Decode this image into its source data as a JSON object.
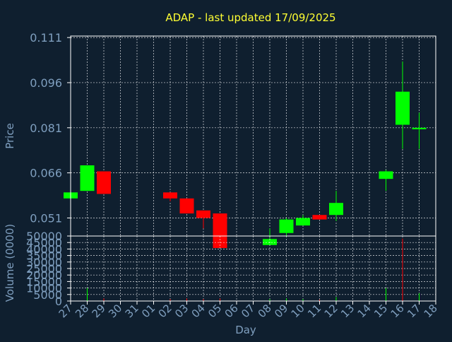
{
  "title": "ADAP - last updated 17/09/2025",
  "colors": {
    "background": "#0f1f2f",
    "title": "#ffff33",
    "axis_text": "#7f9fbf",
    "frame": "#ffffff",
    "grid": "#ffffff",
    "up": "#00ff00",
    "down": "#ff0000"
  },
  "chart_data": [
    {
      "type": "candlestick",
      "ylabel": "Price",
      "ylim": [
        0.045,
        0.1115
      ],
      "yticks": [
        "0.111",
        "0.096",
        "0.081",
        "0.066",
        "0.051"
      ],
      "grid": true,
      "x_ticks": [
        "27",
        "28",
        "29",
        "30",
        "31",
        "01",
        "02",
        "03",
        "04",
        "05",
        "06",
        "07",
        "08",
        "09",
        "10",
        "11",
        "12",
        "13",
        "14",
        "15",
        "16",
        "17",
        "18"
      ],
      "candles": [
        {
          "day": "27",
          "open": 0.0575,
          "close": 0.0595,
          "high": 0.0595,
          "low": 0.0575
        },
        {
          "day": "28",
          "open": 0.06,
          "close": 0.0685,
          "high": 0.0685,
          "low": 0.06
        },
        {
          "day": "29",
          "open": 0.0665,
          "close": 0.059,
          "high": 0.0665,
          "low": 0.059
        },
        {
          "day": "02",
          "open": 0.0595,
          "close": 0.0575,
          "high": 0.0595,
          "low": 0.0565
        },
        {
          "day": "03",
          "open": 0.0575,
          "close": 0.0525,
          "high": 0.0575,
          "low": 0.0525
        },
        {
          "day": "04",
          "open": 0.0535,
          "close": 0.051,
          "high": 0.0535,
          "low": 0.0475
        },
        {
          "day": "05",
          "open": 0.0525,
          "close": 0.041,
          "high": 0.0525,
          "low": 0.041
        },
        {
          "day": "08",
          "open": 0.042,
          "close": 0.044,
          "high": 0.0475,
          "low": 0.042
        },
        {
          "day": "09",
          "open": 0.046,
          "close": 0.0505,
          "high": 0.051,
          "low": 0.045
        },
        {
          "day": "10",
          "open": 0.0485,
          "close": 0.051,
          "high": 0.052,
          "low": 0.0485
        },
        {
          "day": "11",
          "open": 0.052,
          "close": 0.0505,
          "high": 0.052,
          "low": 0.0505
        },
        {
          "day": "12",
          "open": 0.052,
          "close": 0.056,
          "high": 0.06,
          "low": 0.05
        },
        {
          "day": "15",
          "open": 0.064,
          "close": 0.0665,
          "high": 0.067,
          "low": 0.06
        },
        {
          "day": "16",
          "open": 0.082,
          "close": 0.093,
          "high": 0.103,
          "low": 0.074
        },
        {
          "day": "17",
          "open": 0.0805,
          "close": 0.081,
          "high": 0.086,
          "low": 0.074
        }
      ]
    },
    {
      "type": "bar",
      "ylabel": "Volume (0000)",
      "xlabel": "Day",
      "ylim": [
        0,
        50000
      ],
      "yticks": [
        "50000",
        "45000",
        "40000",
        "35000",
        "30000",
        "25000",
        "20000",
        "15000",
        "10000",
        "5000",
        "0"
      ],
      "grid": true,
      "bars": [
        {
          "day": "28",
          "value": 10000,
          "direction": "up"
        },
        {
          "day": "29",
          "value": 2000,
          "direction": "down"
        },
        {
          "day": "02",
          "value": 1500,
          "direction": "down"
        },
        {
          "day": "03",
          "value": 2000,
          "direction": "down"
        },
        {
          "day": "04",
          "value": 1500,
          "direction": "down"
        },
        {
          "day": "05",
          "value": 2000,
          "direction": "down"
        },
        {
          "day": "08",
          "value": 1500,
          "direction": "up"
        },
        {
          "day": "09",
          "value": 2000,
          "direction": "up"
        },
        {
          "day": "10",
          "value": 1500,
          "direction": "up"
        },
        {
          "day": "11",
          "value": 1000,
          "direction": "down"
        },
        {
          "day": "12",
          "value": 3000,
          "direction": "up"
        },
        {
          "day": "15",
          "value": 10000,
          "direction": "up"
        },
        {
          "day": "16",
          "value": 48000,
          "direction": "down"
        },
        {
          "day": "17",
          "value": 6000,
          "direction": "up"
        }
      ]
    }
  ]
}
